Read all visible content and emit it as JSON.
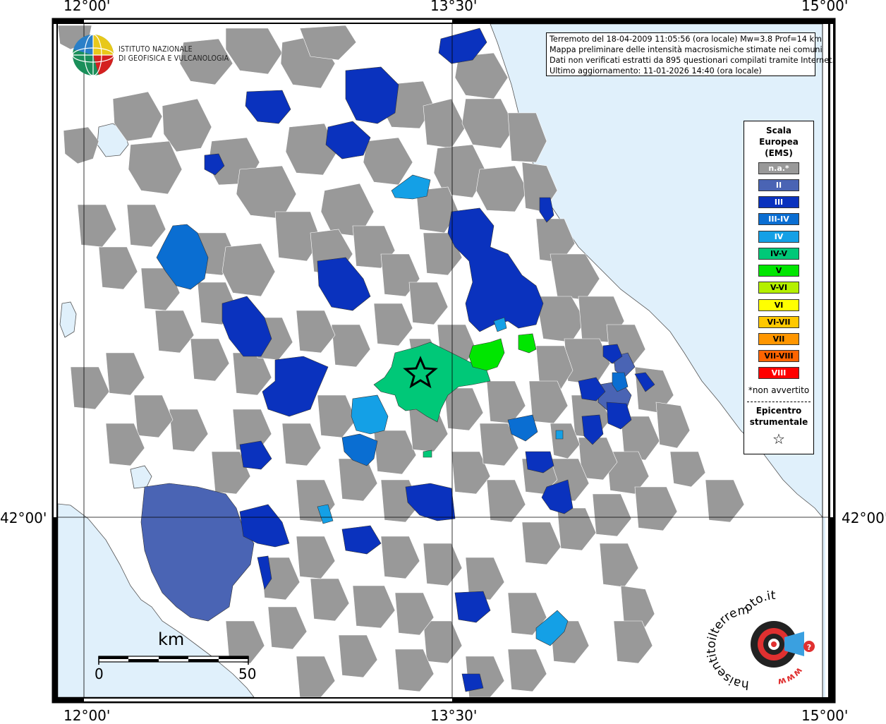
{
  "map": {
    "coordinates": {
      "top": [
        "12°00'",
        "13°30'",
        "15°00'"
      ],
      "bottom": [
        "12°00'",
        "13°30'",
        "15°00'"
      ],
      "left": "42°00'",
      "right": "42°00'"
    },
    "colors": {
      "land_na": "#999999",
      "sea": "#e0f0fb",
      "II": "#4a64b4",
      "III": "#0a32be",
      "III-IV": "#0a6ed2",
      "IV": "#14a0e6",
      "IV-V": "#00c878",
      "V": "#00e600",
      "V-VI": "#b4f000",
      "VI": "#ffff00",
      "VI-VII": "#ffc800",
      "VII": "#ff9600",
      "VII-VIII": "#ff6400",
      "VIII": "#ff0000"
    }
  },
  "logo": {
    "line1": "ISTITUTO NAZIONALE",
    "line2": "DI GEOFISICA E VULCANOLOGIA"
  },
  "info": {
    "line1": "Terremoto del 18-04-2009 11:05:56 (ora locale) Mw=3.8 Prof=14 km",
    "line2": "Mappa preliminare delle intensità macrosismiche stimate nei comuni",
    "line3": "Dati non verificati estratti da 895 questionari compilati tramite Internet.",
    "line4": "Ultimo aggiornamento: 11-01-2026 14:40 (ora locale)"
  },
  "legend": {
    "title1": "Scala",
    "title2": "Europea",
    "title3": "(EMS)",
    "items": [
      "n.a.*",
      "II",
      "III",
      "III-IV",
      "IV",
      "IV-V",
      "V",
      "V-VI",
      "VI",
      "VI-VII",
      "VII",
      "VII-VIII",
      "VIII"
    ],
    "note": "*non avvertito",
    "epicentro1": "Epicentro",
    "epicentro2": "strumentale",
    "star": "☆"
  },
  "scale": {
    "unit": "km",
    "min": "0",
    "max": "50"
  },
  "hsit_logo": {
    "text": "haisentitoilterremoto.it",
    "www": "www."
  }
}
